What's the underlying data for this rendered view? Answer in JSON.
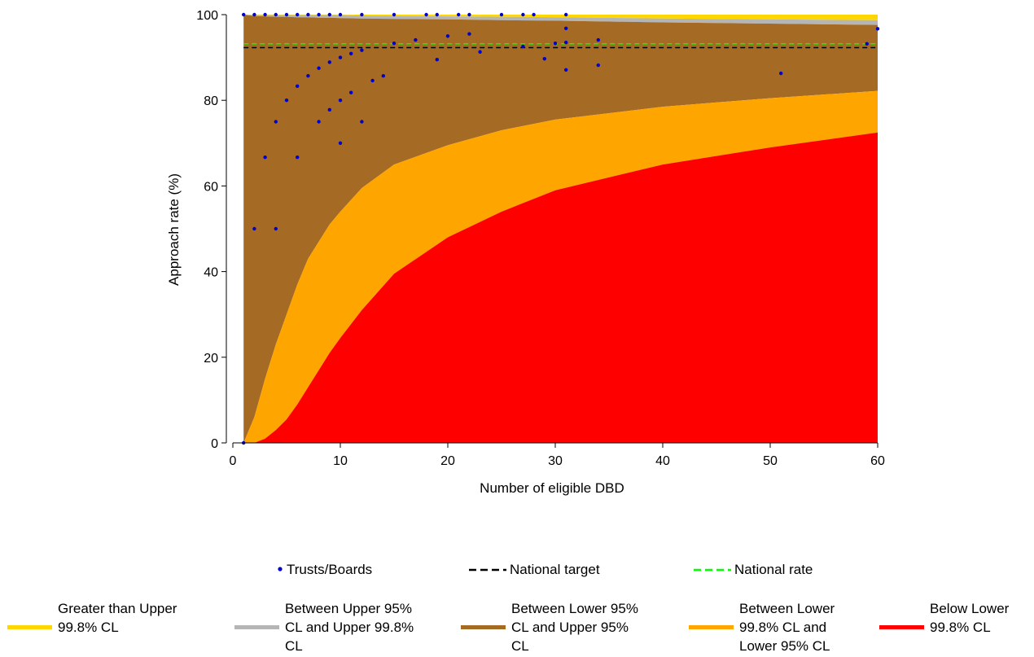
{
  "chart_data": {
    "type": "scatter",
    "title": "",
    "xlabel": "Number of eligible DBD",
    "ylabel": "Approach rate (%)",
    "xlim": [
      0,
      60
    ],
    "ylim": [
      0,
      100
    ],
    "x_ticks": [
      "0",
      "10",
      "20",
      "30",
      "40",
      "50",
      "60"
    ],
    "y_ticks": [
      "0",
      "20",
      "40",
      "60",
      "80",
      "100"
    ],
    "grid": false,
    "legend_position": "bottom",
    "national_target": 92.3,
    "national_rate": 93.2,
    "funnel_limits": {
      "n": [
        1,
        2,
        3,
        4,
        5,
        6,
        7,
        8,
        9,
        10,
        12,
        15,
        20,
        25,
        30,
        40,
        50,
        60
      ],
      "lower_998": [
        0,
        0,
        1,
        3,
        5.5,
        9,
        13,
        17,
        21,
        24.5,
        31,
        39.5,
        48,
        54,
        59,
        65,
        69,
        72.5
      ],
      "lower_95": [
        0,
        6,
        15,
        23,
        30,
        37,
        43,
        47,
        51,
        54,
        59.5,
        65,
        69.5,
        73,
        75.5,
        78.5,
        80.5,
        82.2
      ],
      "upper_95": [
        100,
        99.7,
        99.6,
        99.5,
        99.5,
        99.4,
        99.4,
        99.3,
        99.3,
        99.2,
        99.1,
        99.0,
        98.9,
        98.7,
        98.6,
        98.2,
        97.9,
        97.6
      ],
      "upper_998": [
        100,
        99.9,
        99.9,
        99.9,
        99.9,
        99.9,
        99.9,
        99.9,
        99.9,
        99.9,
        99.8,
        99.7,
        99.6,
        99.5,
        99.4,
        99.1,
        98.9,
        98.7
      ]
    },
    "series": [
      {
        "name": "Trusts/Boards",
        "color": "#0000cc",
        "points": [
          [
            1,
            100
          ],
          [
            1,
            0
          ],
          [
            2,
            100
          ],
          [
            2,
            50
          ],
          [
            3,
            100
          ],
          [
            3,
            66.7
          ],
          [
            4,
            100
          ],
          [
            4,
            75
          ],
          [
            4,
            50
          ],
          [
            5,
            100
          ],
          [
            5,
            80
          ],
          [
            6,
            100
          ],
          [
            6,
            83.3
          ],
          [
            6,
            66.7
          ],
          [
            7,
            100
          ],
          [
            7,
            85.7
          ],
          [
            8,
            100
          ],
          [
            8,
            87.5
          ],
          [
            8,
            75
          ],
          [
            9,
            100
          ],
          [
            9,
            88.9
          ],
          [
            9,
            77.8
          ],
          [
            10,
            100
          ],
          [
            10,
            90
          ],
          [
            10,
            80
          ],
          [
            10,
            70
          ],
          [
            11,
            90.9
          ],
          [
            11,
            81.8
          ],
          [
            12,
            100
          ],
          [
            12,
            91.7
          ],
          [
            12,
            75
          ],
          [
            13,
            84.6
          ],
          [
            14,
            85.7
          ],
          [
            15,
            100
          ],
          [
            15,
            93.3
          ],
          [
            17,
            94.1
          ],
          [
            18,
            100
          ],
          [
            19,
            100
          ],
          [
            19,
            89.5
          ],
          [
            20,
            95
          ],
          [
            21,
            100
          ],
          [
            22,
            100
          ],
          [
            22,
            95.5
          ],
          [
            23,
            91.3
          ],
          [
            25,
            100
          ],
          [
            27,
            100
          ],
          [
            27,
            92.6
          ],
          [
            28,
            100
          ],
          [
            29,
            89.7
          ],
          [
            30,
            93.3
          ],
          [
            31,
            100
          ],
          [
            31,
            96.8
          ],
          [
            31,
            93.5
          ],
          [
            31,
            87.1
          ],
          [
            34,
            94.1
          ],
          [
            34,
            88.2
          ],
          [
            51,
            86.3
          ],
          [
            59,
            93.2
          ],
          [
            60,
            96.7
          ]
        ]
      }
    ],
    "legend": {
      "markers": [
        {
          "label": "Trusts/Boards",
          "style": "dot",
          "color": "#0000cc"
        },
        {
          "label": "National target",
          "style": "dash",
          "color": "#000000"
        },
        {
          "label": "National rate",
          "style": "dash",
          "color": "#00ff00"
        }
      ],
      "bands": [
        {
          "lines": [
            "Greater than Upper",
            "99.8% CL"
          ],
          "color": "#ffd700"
        },
        {
          "lines": [
            "Between Upper 95%",
            "CL and Upper 99.8%",
            "CL"
          ],
          "color": "#b5b5b5"
        },
        {
          "lines": [
            "Between Lower 95%",
            "CL and Upper 95%",
            "CL"
          ],
          "color": "#a56b24"
        },
        {
          "lines": [
            "Between Lower",
            "99.8% CL and",
            "Lower 95% CL"
          ],
          "color": "#ffa500"
        },
        {
          "lines": [
            "Below Lower",
            "99.8% CL"
          ],
          "color": "#ff0000"
        }
      ]
    }
  }
}
